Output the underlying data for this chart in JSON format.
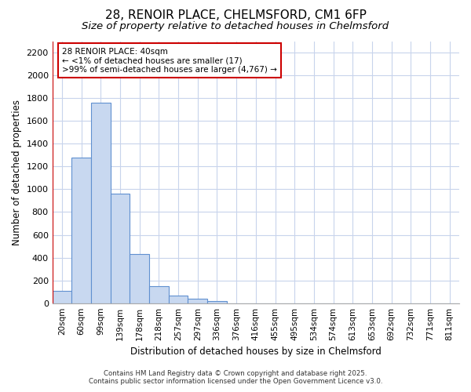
{
  "title_line1": "28, RENOIR PLACE, CHELMSFORD, CM1 6FP",
  "title_line2": "Size of property relative to detached houses in Chelmsford",
  "xlabel": "Distribution of detached houses by size in Chelmsford",
  "ylabel": "Number of detached properties",
  "bar_color": "#c8d8f0",
  "bar_edge_color": "#6090d0",
  "annotation_box_color": "#cc0000",
  "annotation_line1": "28 RENOIR PLACE: 40sqm",
  "annotation_line2": "← <1% of detached houses are smaller (17)",
  "annotation_line3": ">99% of semi-detached houses are larger (4,767) →",
  "property_line_x": 0,
  "background_color": "#ffffff",
  "grid_color": "#c8d4ec",
  "categories": [
    "20sqm",
    "60sqm",
    "99sqm",
    "139sqm",
    "178sqm",
    "218sqm",
    "257sqm",
    "297sqm",
    "336sqm",
    "376sqm",
    "416sqm",
    "455sqm",
    "495sqm",
    "534sqm",
    "574sqm",
    "613sqm",
    "653sqm",
    "692sqm",
    "732sqm",
    "771sqm",
    "811sqm"
  ],
  "bar_heights": [
    110,
    1280,
    1760,
    960,
    430,
    150,
    70,
    40,
    20,
    0,
    0,
    0,
    0,
    0,
    0,
    0,
    0,
    0,
    0,
    0,
    0
  ],
  "n_bars": 21,
  "bar_width": 1,
  "ylim": [
    0,
    2300
  ],
  "yticks": [
    0,
    200,
    400,
    600,
    800,
    1000,
    1200,
    1400,
    1600,
    1800,
    2000,
    2200
  ],
  "figsize": [
    6.0,
    5.0
  ],
  "dpi": 100,
  "footer_line1": "Contains HM Land Registry data © Crown copyright and database right 2025.",
  "footer_line2": "Contains public sector information licensed under the Open Government Licence v3.0."
}
